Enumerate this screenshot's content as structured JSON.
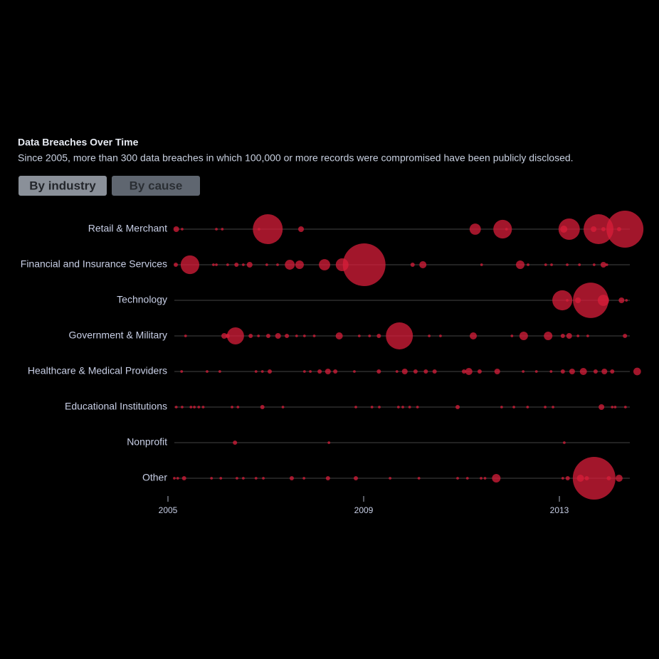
{
  "buttons": [
    "By industry",
    "By cause"
  ],
  "chart_data": {
    "type": "bubble",
    "title": "Data Breaches Over Time",
    "subtitle": "Since 2005, more than 300 data breaches in which 100,000 or more records were compromised have been publicly disclosed.",
    "xlim": [
      2005,
      2014.7
    ],
    "xticks": [
      2005,
      2009,
      2013
    ],
    "series": [
      {
        "name": "Retail & Merchant",
        "color": "#d81e3a",
        "x": [
          2005.17,
          2005.29,
          2005.99,
          2006.11,
          2006.86,
          2007.04,
          2007.72,
          2011.28,
          2011.84,
          2011.92,
          2013.09,
          2013.2,
          2013.7,
          2013.8,
          2013.9,
          2014.22,
          2014.34
        ],
        "values": [
          1.8,
          0.4,
          0.4,
          0.4,
          0.4,
          49,
          1.8,
          7,
          19,
          0.4,
          2.8,
          25,
          1.8,
          49,
          1,
          1,
          75
        ]
      },
      {
        "name": "Financial and Insurance Services",
        "color": "#d81e3a",
        "x": [
          2005.16,
          2005.45,
          2005.93,
          2005.99,
          2006.22,
          2006.4,
          2006.54,
          2006.67,
          2007.02,
          2007.24,
          2007.49,
          2007.69,
          2008.2,
          2008.56,
          2009.01,
          2010,
          2010.21,
          2011.41,
          2012.2,
          2012.36,
          2012.72,
          2012.84,
          2013.16,
          2013.41,
          2013.71,
          2013.9,
          2013.97
        ],
        "values": [
          1,
          19,
          0.4,
          0.4,
          0.4,
          1,
          0.4,
          1.8,
          0.4,
          0.4,
          5.4,
          4,
          7,
          9,
          100,
          1,
          2.8,
          0.4,
          4,
          0.4,
          0.4,
          0.4,
          0.4,
          0.4,
          0.4,
          1.8,
          0.4
        ]
      },
      {
        "name": "Technology",
        "color": "#d81e3a",
        "x": [
          2013.06,
          2013.16,
          2013.38,
          2013.64,
          2013.9,
          2014.27,
          2014.37
        ],
        "values": [
          22,
          0.4,
          1.8,
          69,
          7,
          1.8,
          0.4
        ]
      },
      {
        "name": "Government & Military",
        "color": "#d81e3a",
        "x": [
          2005.36,
          2006.15,
          2006.22,
          2006.38,
          2006.69,
          2006.85,
          2007.05,
          2007.25,
          2007.43,
          2007.63,
          2007.79,
          2007.99,
          2008.5,
          2008.91,
          2009.12,
          2009.31,
          2009.73,
          2010.34,
          2010.57,
          2011.24,
          2012.03,
          2012.27,
          2012.77,
          2013.07,
          2013.2,
          2013.38,
          2013.58,
          2014.34
        ],
        "values": [
          0.4,
          1.8,
          1,
          16,
          1,
          0.4,
          1,
          1.8,
          1,
          0.4,
          0.4,
          0.4,
          2.8,
          0.4,
          0.4,
          1,
          40,
          0.4,
          0.4,
          2.8,
          0.4,
          4,
          4,
          1,
          1.8,
          0.4,
          0.4,
          1
        ]
      },
      {
        "name": "Healthcare & Medical Providers",
        "color": "#d81e3a",
        "x": [
          2005.28,
          2005.8,
          2006.06,
          2006.8,
          2006.93,
          2007.08,
          2007.79,
          2007.91,
          2008.1,
          2008.27,
          2008.42,
          2008.81,
          2009.31,
          2009.68,
          2009.84,
          2010.06,
          2010.27,
          2010.45,
          2011.05,
          2011.15,
          2011.37,
          2011.73,
          2012.26,
          2012.53,
          2012.83,
          2013.07,
          2013.26,
          2013.49,
          2013.74,
          2013.92,
          2014.08,
          2014.59
        ],
        "values": [
          0.4,
          0.4,
          0.4,
          0.4,
          0.4,
          1,
          0.4,
          0.4,
          1,
          1.8,
          1,
          0.4,
          1,
          0.4,
          1.8,
          1,
          1,
          1,
          1,
          2.8,
          1,
          1.8,
          0.4,
          0.4,
          0.4,
          1,
          1.8,
          2.8,
          1,
          1.8,
          1,
          3.2
        ]
      },
      {
        "name": "Educational Institutions",
        "color": "#d81e3a",
        "x": [
          2005.17,
          2005.29,
          2005.47,
          2005.54,
          2005.63,
          2005.72,
          2006.31,
          2006.43,
          2006.93,
          2007.35,
          2008.84,
          2009.17,
          2009.32,
          2009.71,
          2009.8,
          2009.94,
          2010.1,
          2010.92,
          2011.82,
          2012.07,
          2012.35,
          2012.71,
          2012.87,
          2013.86,
          2014.08,
          2014.14,
          2014.35
        ],
        "values": [
          0.4,
          0.4,
          0.4,
          0.4,
          0.4,
          0.4,
          0.4,
          0.4,
          1,
          0.4,
          0.4,
          0.4,
          0.4,
          0.4,
          0.4,
          0.4,
          0.4,
          1,
          0.4,
          0.4,
          0.4,
          0.4,
          0.4,
          1.8,
          0.4,
          0.4,
          0.4
        ]
      },
      {
        "name": "Nonprofit",
        "color": "#d81e3a",
        "x": [
          2006.37,
          2008.29,
          2013.1
        ],
        "values": [
          1,
          0.4,
          0.4
        ]
      },
      {
        "name": "Other",
        "color": "#d81e3a",
        "x": [
          2005.13,
          2005.2,
          2005.33,
          2005.89,
          2006.08,
          2006.41,
          2006.54,
          2006.8,
          2006.95,
          2007.53,
          2007.78,
          2008.27,
          2008.84,
          2009.54,
          2010.13,
          2010.92,
          2011.12,
          2011.4,
          2011.48,
          2011.71,
          2013.07,
          2013.17,
          2013.43,
          2013.56,
          2013.71,
          2014.01,
          2014.22
        ],
        "values": [
          0.4,
          0.4,
          1,
          0.4,
          0.4,
          0.4,
          0.4,
          0.4,
          0.4,
          1,
          0.4,
          1,
          1,
          0.4,
          0.4,
          0.4,
          0.4,
          0.4,
          0.4,
          4,
          0.4,
          1,
          2.8,
          1,
          100,
          1,
          2.8
        ]
      }
    ]
  }
}
